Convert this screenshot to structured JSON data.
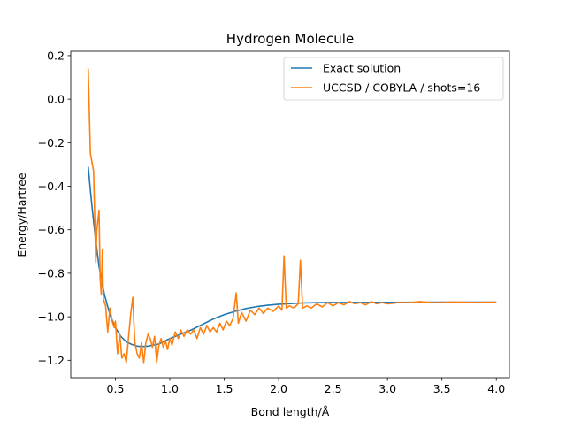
{
  "chart_data": {
    "type": "line",
    "title": "Hydrogen Molecule",
    "xlabel": "Bond length/Å",
    "ylabel": "Energy/Hartree",
    "xlim": [
      0.09,
      4.12
    ],
    "ylim": [
      -1.28,
      0.22
    ],
    "grid": false,
    "legend_position": "top-right",
    "x_ticks": [
      0.5,
      1.0,
      1.5,
      2.0,
      2.5,
      3.0,
      3.5,
      4.0
    ],
    "x_tick_labels": [
      "0.5",
      "1.0",
      "1.5",
      "2.0",
      "2.5",
      "3.0",
      "3.5",
      "4.0"
    ],
    "y_ticks": [
      0.2,
      0.0,
      -0.2,
      -0.4,
      -0.6,
      -0.8,
      -1.0,
      -1.2
    ],
    "y_tick_labels": [
      "0.2",
      "0.0",
      "−0.2",
      "−0.4",
      "−0.6",
      "−0.8",
      "−1.0",
      "−1.2"
    ],
    "series": [
      {
        "name": "Exact solution",
        "color": "#1f77b4",
        "points": [
          [
            0.25,
            -0.31
          ],
          [
            0.28,
            -0.47
          ],
          [
            0.31,
            -0.61
          ],
          [
            0.35,
            -0.77
          ],
          [
            0.4,
            -0.9
          ],
          [
            0.45,
            -0.99
          ],
          [
            0.5,
            -1.05
          ],
          [
            0.55,
            -1.09
          ],
          [
            0.6,
            -1.115
          ],
          [
            0.65,
            -1.127
          ],
          [
            0.7,
            -1.135
          ],
          [
            0.74,
            -1.137
          ],
          [
            0.8,
            -1.135
          ],
          [
            0.9,
            -1.125
          ],
          [
            1.0,
            -1.1
          ],
          [
            1.1,
            -1.08
          ],
          [
            1.2,
            -1.06
          ],
          [
            1.3,
            -1.035
          ],
          [
            1.4,
            -1.01
          ],
          [
            1.5,
            -0.99
          ],
          [
            1.6,
            -0.975
          ],
          [
            1.7,
            -0.962
          ],
          [
            1.8,
            -0.953
          ],
          [
            1.9,
            -0.947
          ],
          [
            2.0,
            -0.942
          ],
          [
            2.2,
            -0.937
          ],
          [
            2.4,
            -0.935
          ],
          [
            2.6,
            -0.934
          ],
          [
            3.0,
            -0.9335
          ],
          [
            3.5,
            -0.933
          ],
          [
            4.0,
            -0.933
          ]
        ]
      },
      {
        "name": "UCCSD / COBYLA / shots=16",
        "color": "#ff7f0e",
        "points": [
          [
            0.25,
            0.14
          ],
          [
            0.27,
            -0.25
          ],
          [
            0.3,
            -0.33
          ],
          [
            0.32,
            -0.75
          ],
          [
            0.33,
            -0.6
          ],
          [
            0.35,
            -0.51
          ],
          [
            0.36,
            -0.82
          ],
          [
            0.37,
            -0.9
          ],
          [
            0.38,
            -0.69
          ],
          [
            0.39,
            -0.92
          ],
          [
            0.41,
            -0.95
          ],
          [
            0.43,
            -1.07
          ],
          [
            0.45,
            -0.96
          ],
          [
            0.47,
            -1.02
          ],
          [
            0.49,
            -1.05
          ],
          [
            0.5,
            -1.02
          ],
          [
            0.52,
            -1.17
          ],
          [
            0.54,
            -1.08
          ],
          [
            0.56,
            -1.19
          ],
          [
            0.58,
            -1.17
          ],
          [
            0.6,
            -1.21
          ],
          [
            0.62,
            -1.1
          ],
          [
            0.64,
            -0.99
          ],
          [
            0.65,
            -0.95
          ],
          [
            0.66,
            -0.91
          ],
          [
            0.67,
            -1.03
          ],
          [
            0.68,
            -1.12
          ],
          [
            0.7,
            -1.17
          ],
          [
            0.72,
            -1.19
          ],
          [
            0.74,
            -1.12
          ],
          [
            0.76,
            -1.21
          ],
          [
            0.78,
            -1.12
          ],
          [
            0.8,
            -1.08
          ],
          [
            0.82,
            -1.1
          ],
          [
            0.84,
            -1.14
          ],
          [
            0.86,
            -1.09
          ],
          [
            0.88,
            -1.21
          ],
          [
            0.9,
            -1.13
          ],
          [
            0.92,
            -1.1
          ],
          [
            0.94,
            -1.14
          ],
          [
            0.96,
            -1.11
          ],
          [
            0.98,
            -1.15
          ],
          [
            1.0,
            -1.1
          ],
          [
            1.02,
            -1.13
          ],
          [
            1.05,
            -1.07
          ],
          [
            1.08,
            -1.1
          ],
          [
            1.1,
            -1.06
          ],
          [
            1.13,
            -1.09
          ],
          [
            1.16,
            -1.06
          ],
          [
            1.19,
            -1.08
          ],
          [
            1.22,
            -1.06
          ],
          [
            1.25,
            -1.1
          ],
          [
            1.28,
            -1.05
          ],
          [
            1.31,
            -1.08
          ],
          [
            1.34,
            -1.04
          ],
          [
            1.37,
            -1.07
          ],
          [
            1.4,
            -1.05
          ],
          [
            1.43,
            -1.07
          ],
          [
            1.46,
            -1.03
          ],
          [
            1.49,
            -1.06
          ],
          [
            1.52,
            -1.02
          ],
          [
            1.55,
            -1.04
          ],
          [
            1.58,
            -1.01
          ],
          [
            1.61,
            -0.89
          ],
          [
            1.63,
            -1.03
          ],
          [
            1.66,
            -0.98
          ],
          [
            1.7,
            -1.02
          ],
          [
            1.74,
            -0.97
          ],
          [
            1.78,
            -0.99
          ],
          [
            1.82,
            -0.96
          ],
          [
            1.86,
            -0.985
          ],
          [
            1.9,
            -0.96
          ],
          [
            1.95,
            -0.975
          ],
          [
            2.0,
            -0.95
          ],
          [
            2.03,
            -0.97
          ],
          [
            2.05,
            -0.72
          ],
          [
            2.07,
            -0.96
          ],
          [
            2.1,
            -0.95
          ],
          [
            2.14,
            -0.96
          ],
          [
            2.18,
            -0.94
          ],
          [
            2.2,
            -0.74
          ],
          [
            2.22,
            -0.96
          ],
          [
            2.26,
            -0.95
          ],
          [
            2.3,
            -0.96
          ],
          [
            2.35,
            -0.94
          ],
          [
            2.4,
            -0.955
          ],
          [
            2.45,
            -0.935
          ],
          [
            2.5,
            -0.95
          ],
          [
            2.55,
            -0.935
          ],
          [
            2.6,
            -0.945
          ],
          [
            2.65,
            -0.93
          ],
          [
            2.7,
            -0.94
          ],
          [
            2.75,
            -0.935
          ],
          [
            2.8,
            -0.945
          ],
          [
            2.85,
            -0.93
          ],
          [
            2.9,
            -0.94
          ],
          [
            2.95,
            -0.935
          ],
          [
            3.0,
            -0.94
          ],
          [
            3.1,
            -0.935
          ],
          [
            3.2,
            -0.935
          ],
          [
            3.3,
            -0.93
          ],
          [
            3.4,
            -0.935
          ],
          [
            3.5,
            -0.935
          ],
          [
            3.6,
            -0.932
          ],
          [
            3.8,
            -0.934
          ],
          [
            4.0,
            -0.933
          ]
        ]
      }
    ]
  }
}
